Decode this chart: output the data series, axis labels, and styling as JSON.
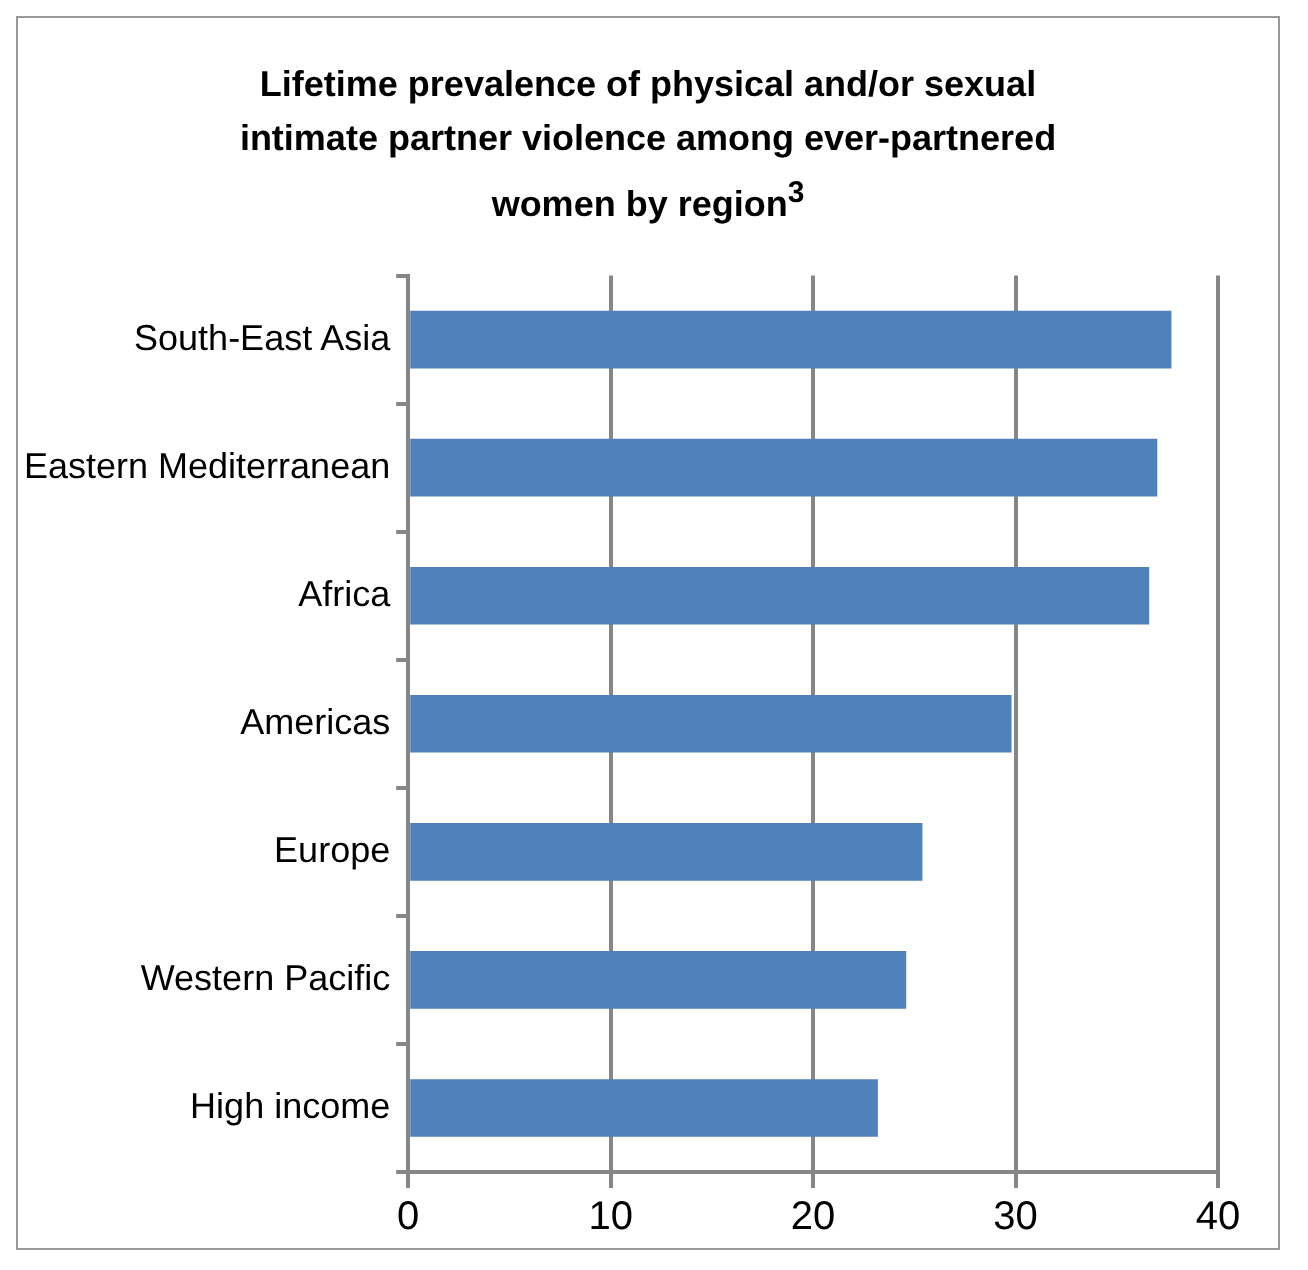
{
  "chart_data": {
    "type": "bar",
    "title": "Lifetime prevalence of physical and/or sexual intimate partner violence among ever-partnered women by region$^{3}$",
    "orientation": "horizontal",
    "categories": [
      "South-East Asia",
      "Eastern Mediterranean",
      "Africa",
      "Americas",
      "Europe",
      "Western Pacific",
      "High income"
    ],
    "values": [
      37.7,
      37.0,
      36.6,
      29.8,
      25.4,
      24.6,
      23.2
    ],
    "color": "#4f81bd",
    "xlim": [
      0,
      40
    ],
    "xticks": [
      0,
      10,
      20,
      30,
      40
    ],
    "grid": "x"
  }
}
